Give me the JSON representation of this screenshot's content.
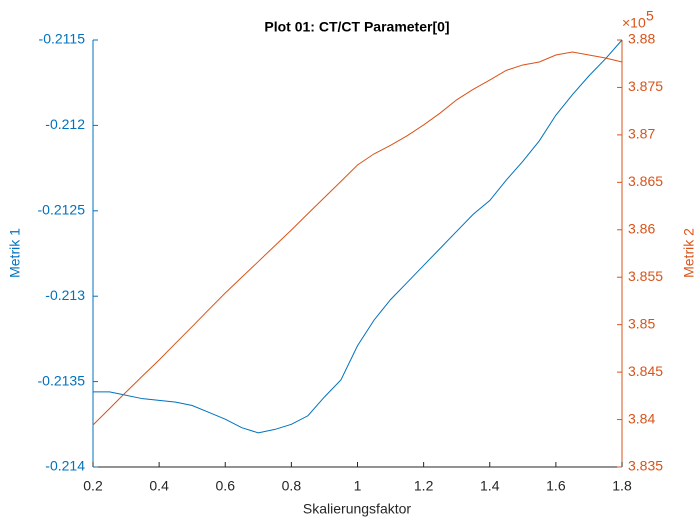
{
  "chart_data": {
    "type": "line",
    "title": "Plot 01: CT/CT Parameter[0]",
    "x_label": "Skalierungsfaktor",
    "y_label": "Metrik 1",
    "y2_label": "Metrik 2",
    "y2_exponent": {
      "base": "×10",
      "power": "5"
    },
    "x": [
      0.2,
      0.25,
      0.3,
      0.35,
      0.4,
      0.45,
      0.5,
      0.55,
      0.6,
      0.65,
      0.7,
      0.75,
      0.8,
      0.85,
      0.9,
      0.95,
      1.0,
      1.05,
      1.1,
      1.15,
      1.2,
      1.25,
      1.3,
      1.35,
      1.4,
      1.45,
      1.5,
      1.55,
      1.6,
      1.65,
      1.7,
      1.75,
      1.8
    ],
    "series": [
      {
        "name": "Metrik 1",
        "color": "#0072bd",
        "axis": "y",
        "values": [
          -0.21356,
          -0.21356,
          -0.21358,
          -0.2136,
          -0.21361,
          -0.21362,
          -0.21364,
          -0.21368,
          -0.21372,
          -0.21377,
          -0.2138,
          -0.21378,
          -0.21375,
          -0.2137,
          -0.21359,
          -0.21349,
          -0.21329,
          -0.21314,
          -0.21302,
          -0.21292,
          -0.21282,
          -0.21272,
          -0.21262,
          -0.21252,
          -0.21244,
          -0.21232,
          -0.21221,
          -0.21209,
          -0.21194,
          -0.21182,
          -0.21171,
          -0.21161,
          -0.2115
        ]
      },
      {
        "name": "Metrik 2",
        "color": "#d95319",
        "axis": "y2",
        "values": [
          383943,
          384115,
          384290,
          384460,
          384628,
          384805,
          384980,
          385158,
          385334,
          385500,
          385665,
          385832,
          385998,
          386170,
          386340,
          386510,
          386683,
          386800,
          386890,
          386990,
          387105,
          387230,
          387370,
          387480,
          387578,
          387680,
          387737,
          387768,
          387842,
          387874,
          387842,
          387810,
          387768
        ]
      }
    ],
    "xlim": [
      0.2,
      1.8
    ],
    "xticks": [
      0.2,
      0.4,
      0.6,
      0.8,
      1,
      1.2,
      1.4,
      1.6,
      1.8
    ],
    "ylim": [
      -0.214,
      -0.2115
    ],
    "yticks": [
      -0.214,
      -0.2135,
      -0.213,
      -0.2125,
      -0.212,
      -0.2115
    ],
    "y2lim": [
      383500,
      388000
    ],
    "y2ticks": [
      {
        "value": 383500,
        "label": "3.835"
      },
      {
        "value": 384000,
        "label": "3.84"
      },
      {
        "value": 384500,
        "label": "3.845"
      },
      {
        "value": 385000,
        "label": "3.85"
      },
      {
        "value": 385500,
        "label": "3.855"
      },
      {
        "value": 386000,
        "label": "3.86"
      },
      {
        "value": 386500,
        "label": "3.865"
      },
      {
        "value": 387000,
        "label": "3.87"
      },
      {
        "value": 387500,
        "label": "3.875"
      },
      {
        "value": 388000,
        "label": "3.88"
      }
    ],
    "grid": false
  }
}
